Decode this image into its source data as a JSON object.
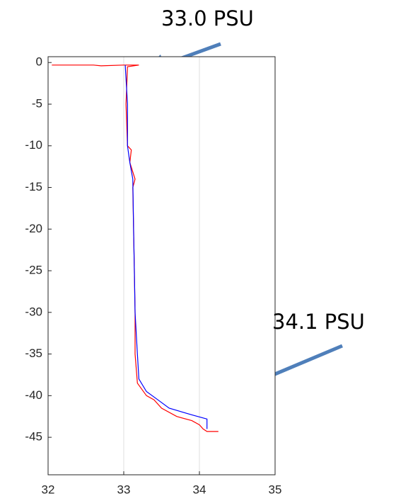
{
  "chart_data": {
    "type": "line",
    "annotations": [
      "33.0 PSU",
      "34.1 PSU"
    ],
    "xlim": [
      32,
      35
    ],
    "xticks": [
      32,
      33,
      34,
      35
    ],
    "ylim": [
      -49.5,
      0.7
    ],
    "yticks": [
      0,
      -5,
      -10,
      -15,
      -20,
      -25,
      -30,
      -35,
      -40,
      -45
    ],
    "grid": "x",
    "series": [
      {
        "color": "#ff0000",
        "x": [
          32.05,
          32.6,
          32.7,
          33.0,
          33.05,
          33.2,
          33.05,
          33.03,
          33.05,
          33.1,
          33.08,
          33.15,
          33.12,
          33.13,
          33.14,
          33.15,
          33.15,
          33.18,
          33.3,
          33.4,
          33.5,
          33.7,
          33.9,
          34.0,
          34.05,
          34.1,
          34.25
        ],
        "values": [
          -0.3,
          -0.3,
          -0.4,
          -0.3,
          -0.3,
          -0.3,
          -0.5,
          -5,
          -10,
          -10.5,
          -12,
          -14,
          -15,
          -20,
          -25,
          -30,
          -35,
          -38.5,
          -40,
          -40.5,
          -41.5,
          -42.5,
          -43,
          -43.5,
          -44,
          -44.3,
          -44.3
        ]
      },
      {
        "color": "#0000ff",
        "x": [
          33.02,
          33.05,
          33.05,
          33.08,
          33.12,
          33.13,
          33.14,
          33.15,
          33.18,
          33.2,
          33.3,
          33.45,
          33.6,
          33.9,
          34.1,
          34.1
        ],
        "values": [
          -0.3,
          -5,
          -10,
          -12,
          -14,
          -20,
          -25,
          -30,
          -35,
          -38,
          -39.5,
          -40.5,
          -41.5,
          -42.3,
          -42.8,
          -44
        ]
      }
    ]
  }
}
